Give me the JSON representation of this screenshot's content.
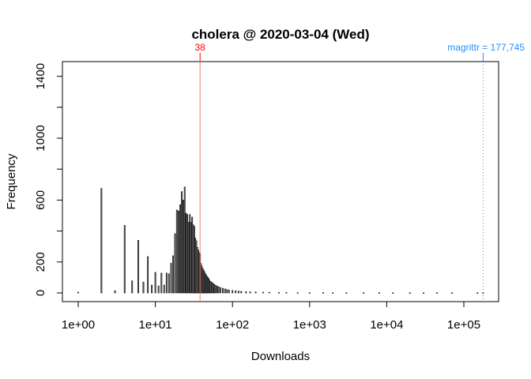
{
  "chart_data": {
    "type": "bar",
    "title": "cholera @ 2020-03-04 (Wed)",
    "xlabel": "Downloads",
    "ylabel": "Frequency",
    "x_scale": "log10",
    "xlim": [
      1,
      177745
    ],
    "ylim": [
      0,
      1440
    ],
    "x_ticks": [
      1,
      10,
      100,
      1000,
      10000,
      100000
    ],
    "x_tick_labels": [
      "1e+00",
      "1e+01",
      "1e+02",
      "1e+03",
      "1e+04",
      "1e+05"
    ],
    "y_ticks": [
      0,
      200,
      400,
      600,
      800,
      1000,
      1200,
      1400
    ],
    "y_tick_labels": [
      "0",
      "200",
      "",
      "600",
      "",
      "1000",
      "",
      "1400"
    ],
    "grid": false,
    "bars": {
      "x": [
        1,
        2,
        3,
        4,
        5,
        6,
        7,
        8,
        9,
        10,
        11,
        12,
        13,
        14,
        15,
        16,
        17,
        18,
        19,
        20,
        21,
        22,
        23,
        24,
        25,
        26,
        27,
        28,
        29,
        30,
        31,
        32,
        33,
        34,
        35,
        36,
        37,
        38,
        39,
        40,
        41,
        42,
        43,
        44,
        45,
        46,
        47,
        48,
        49,
        50,
        52,
        54,
        56,
        58,
        60,
        63,
        66,
        70,
        75,
        80,
        85,
        90,
        100,
        110,
        120,
        130,
        150,
        170,
        200,
        250,
        300,
        400,
        500,
        700,
        1000,
        1500,
        2000,
        3000,
        5000,
        8000,
        12000,
        20000,
        30000,
        45000,
        70000,
        150000,
        177745
      ],
      "values": [
        5,
        675,
        14,
        437,
        78,
        340,
        70,
        235,
        51,
        133,
        46,
        128,
        51,
        128,
        124,
        192,
        240,
        383,
        536,
        530,
        570,
        655,
        600,
        685,
        515,
        507,
        456,
        507,
        456,
        490,
        440,
        430,
        354,
        337,
        294,
        277,
        260,
        255,
        190,
        175,
        160,
        150,
        140,
        130,
        120,
        112,
        105,
        100,
        92,
        85,
        75,
        68,
        62,
        56,
        50,
        45,
        40,
        35,
        30,
        26,
        22,
        19,
        16,
        14,
        12,
        10,
        8,
        7,
        6,
        5,
        4,
        3,
        3,
        2,
        2,
        2,
        1,
        1,
        1,
        1,
        1,
        1,
        1,
        1,
        1,
        1,
        1
      ],
      "fill": "#808080",
      "border": "#000000"
    },
    "reference_lines": [
      {
        "label": "38",
        "x": 38,
        "color": "#F08080",
        "label_color": "#FF0000",
        "style": "solid"
      },
      {
        "label": "magrittr = 177,745",
        "x": 177745,
        "color": "#1E90FF",
        "label_color": "#1E90FF",
        "style": "dotted"
      }
    ]
  }
}
